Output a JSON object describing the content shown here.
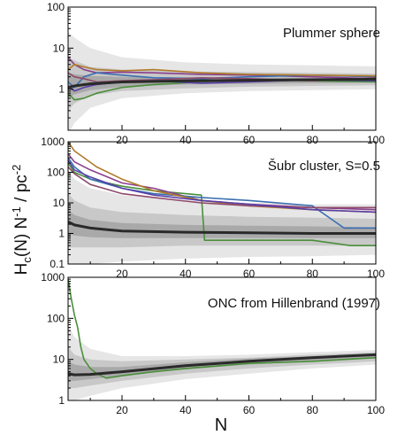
{
  "figure": {
    "ylabel": "H_c(N) N^{-1} / pc^{-2}",
    "xlabel": "N"
  },
  "colors": {
    "band_outer": "#e6e6e6",
    "band_mid": "#c8c8c8",
    "band_inner": "#a9a9a9",
    "median": "#2a2a2a",
    "axis": "#000000",
    "series_palette": [
      "#4a8f3a",
      "#8a3f8f",
      "#3b6fb0",
      "#b07a2a",
      "#8f4a6a",
      "#5a3fa8"
    ]
  },
  "chart_data": [
    {
      "type": "line",
      "title": "Plummer sphere",
      "yscale": "log",
      "xlim": [
        3,
        100
      ],
      "ylim": [
        0.1,
        100
      ],
      "xticks": [
        20,
        40,
        60,
        80,
        100
      ],
      "yticks": [
        1,
        10,
        100
      ],
      "ytick_labels": [
        "1",
        "10",
        "100"
      ],
      "median": {
        "x": [
          3,
          5,
          10,
          20,
          40,
          60,
          80,
          100
        ],
        "y": [
          1.1,
          1.2,
          1.35,
          1.5,
          1.6,
          1.65,
          1.7,
          1.75
        ]
      },
      "bands": {
        "x": [
          3,
          5,
          10,
          20,
          40,
          60,
          80,
          100
        ],
        "outer_low": [
          0.08,
          0.15,
          0.35,
          0.6,
          0.8,
          0.9,
          0.95,
          1.0
        ],
        "outer_high": [
          25,
          18,
          10,
          6,
          4.5,
          4,
          3.8,
          3.6
        ],
        "mid_low": [
          0.3,
          0.45,
          0.7,
          0.9,
          1.05,
          1.15,
          1.2,
          1.25
        ],
        "mid_high": [
          6,
          5,
          3.5,
          3,
          2.7,
          2.6,
          2.5,
          2.4
        ],
        "inner_low": [
          0.6,
          0.75,
          0.95,
          1.15,
          1.3,
          1.35,
          1.4,
          1.45
        ],
        "inner_high": [
          2.5,
          2.3,
          2.1,
          2,
          1.95,
          1.9,
          1.9,
          1.9
        ]
      },
      "series": [
        {
          "x": [
            3,
            5,
            8,
            12,
            20,
            30,
            45,
            60,
            80,
            100
          ],
          "y": [
            0.8,
            0.55,
            0.6,
            0.8,
            1.1,
            1.3,
            1.5,
            1.7,
            1.6,
            1.5
          ]
        },
        {
          "x": [
            3,
            5,
            8,
            12,
            20,
            30,
            45,
            60,
            80,
            100
          ],
          "y": [
            6,
            4,
            3,
            2.5,
            2.6,
            2.5,
            2.3,
            2.2,
            2.0,
            1.8
          ]
        },
        {
          "x": [
            3,
            5,
            8,
            12,
            20,
            30,
            45,
            60,
            80,
            100
          ],
          "y": [
            1.5,
            1.1,
            2.0,
            2.5,
            2.2,
            1.9,
            1.8,
            2.0,
            2.2,
            2.0
          ]
        },
        {
          "x": [
            3,
            5,
            8,
            12,
            20,
            30,
            45,
            60,
            80,
            100
          ],
          "y": [
            3,
            4,
            3.5,
            3,
            2.8,
            3.0,
            2.5,
            2.3,
            2.2,
            2.1
          ]
        },
        {
          "x": [
            3,
            5,
            8,
            12,
            20,
            30,
            45,
            60,
            80,
            100
          ],
          "y": [
            2.5,
            2,
            1.8,
            1.5,
            1.6,
            1.7,
            1.9,
            1.8,
            1.6,
            1.9
          ]
        },
        {
          "x": [
            3,
            5,
            8,
            12,
            20,
            30,
            45,
            60,
            80,
            100
          ],
          "y": [
            1.2,
            0.9,
            1.1,
            1.3,
            1.5,
            1.6,
            1.4,
            1.5,
            1.7,
            1.6
          ]
        }
      ]
    },
    {
      "type": "line",
      "title": "Šubr cluster, S=0.5",
      "yscale": "log",
      "xlim": [
        3,
        100
      ],
      "ylim": [
        0.1,
        1000
      ],
      "xticks": [
        20,
        40,
        60,
        80,
        100
      ],
      "yticks": [
        0.1,
        1,
        10,
        100,
        1000
      ],
      "ytick_labels": [
        "0.1",
        "1",
        "10",
        "100",
        "1000"
      ],
      "median": {
        "x": [
          3,
          5,
          10,
          20,
          40,
          60,
          80,
          100
        ],
        "y": [
          2.4,
          1.9,
          1.5,
          1.2,
          1.1,
          1.05,
          1.0,
          1.0
        ]
      },
      "bands": {
        "x": [
          3,
          5,
          10,
          20,
          40,
          60,
          80,
          100
        ],
        "outer_low": [
          0.1,
          0.1,
          0.1,
          0.12,
          0.15,
          0.17,
          0.18,
          0.2
        ],
        "outer_high": [
          120,
          60,
          30,
          18,
          12,
          10,
          9,
          9
        ],
        "mid_low": [
          0.35,
          0.35,
          0.35,
          0.35,
          0.4,
          0.4,
          0.4,
          0.4
        ],
        "mid_high": [
          20,
          12,
          7,
          5,
          4,
          3.5,
          3.3,
          3
        ],
        "inner_low": [
          1,
          0.85,
          0.75,
          0.7,
          0.7,
          0.7,
          0.7,
          0.7
        ],
        "inner_high": [
          6,
          4,
          2.8,
          2.2,
          1.9,
          1.8,
          1.7,
          1.6
        ]
      },
      "series": [
        {
          "x": [
            3,
            5,
            10,
            20,
            30,
            45,
            46,
            60,
            80,
            92,
            100
          ],
          "y": [
            200,
            100,
            60,
            35,
            25,
            18,
            0.6,
            0.6,
            0.6,
            0.4,
            0.4
          ]
        },
        {
          "x": [
            3,
            5,
            10,
            20,
            30,
            45,
            60,
            80,
            100
          ],
          "y": [
            400,
            220,
            120,
            45,
            30,
            12,
            9,
            7,
            6
          ]
        },
        {
          "x": [
            3,
            5,
            10,
            20,
            30,
            45,
            60,
            80,
            90,
            100
          ],
          "y": [
            300,
            150,
            60,
            30,
            20,
            15,
            12,
            8,
            1.5,
            1.5
          ]
        },
        {
          "x": [
            3,
            5,
            8,
            12,
            20,
            30,
            45,
            60,
            80,
            100
          ],
          "y": [
            1000,
            500,
            300,
            150,
            60,
            25,
            12,
            8,
            6,
            5
          ]
        },
        {
          "x": [
            3,
            5,
            10,
            20,
            30,
            45,
            60,
            80,
            100
          ],
          "y": [
            150,
            90,
            40,
            20,
            15,
            10,
            8,
            7,
            7
          ]
        },
        {
          "x": [
            3,
            5,
            10,
            20,
            30,
            45,
            60,
            80,
            100
          ],
          "y": [
            250,
            120,
            70,
            30,
            18,
            12,
            9,
            6,
            5
          ]
        }
      ]
    },
    {
      "type": "line",
      "title": "ONC from Hillenbrand (1997)",
      "yscale": "log",
      "xlim": [
        3,
        100
      ],
      "ylim": [
        1,
        1000
      ],
      "xticks": [
        20,
        40,
        60,
        80,
        100
      ],
      "yticks": [
        1,
        10,
        100,
        1000
      ],
      "ytick_labels": [
        "1",
        "10",
        "100",
        "1000"
      ],
      "median": {
        "x": [
          3,
          5,
          10,
          20,
          40,
          60,
          80,
          100
        ],
        "y": [
          4.5,
          4.2,
          4.3,
          5,
          7,
          9,
          11,
          13
        ]
      },
      "bands": {
        "x": [
          3,
          5,
          10,
          20,
          40,
          60,
          80,
          100
        ],
        "outer_low": [
          1,
          1,
          1.3,
          2,
          3.3,
          4.5,
          6,
          7.5
        ],
        "outer_high": [
          70,
          35,
          18,
          12,
          12,
          13,
          15,
          17
        ],
        "mid_low": [
          2,
          2,
          2.3,
          3,
          4.5,
          6,
          7.5,
          9
        ],
        "mid_high": [
          20,
          13,
          10,
          9,
          10,
          11,
          13,
          15
        ],
        "inner_low": [
          3,
          3,
          3.3,
          4,
          5.7,
          7.5,
          9,
          11
        ],
        "inner_high": [
          9,
          7.5,
          6.5,
          6.5,
          8.5,
          10.5,
          12,
          14
        ]
      },
      "series": [
        {
          "x": [
            3,
            4,
            5,
            6,
            7,
            8,
            10,
            12,
            15,
            20,
            30,
            40,
            60,
            80,
            100
          ],
          "y": [
            900,
            300,
            120,
            60,
            20,
            10,
            6,
            4.5,
            3.5,
            4,
            5,
            6,
            8,
            9,
            11
          ]
        }
      ]
    }
  ]
}
